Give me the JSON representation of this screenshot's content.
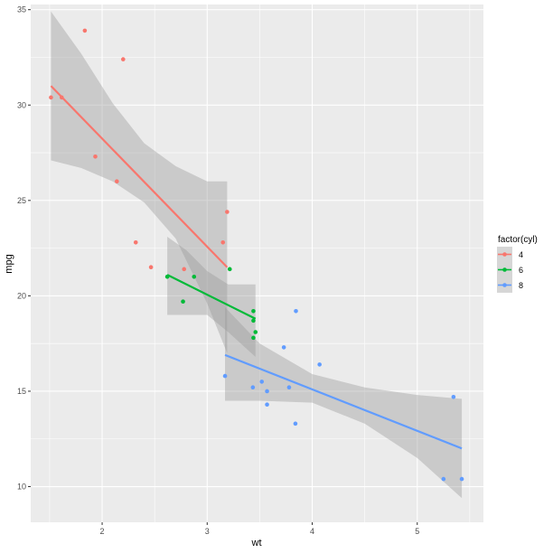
{
  "chart_data": {
    "type": "scatter",
    "xlabel": "wt",
    "ylabel": "mpg",
    "xlim": [
      1.32,
      5.63
    ],
    "ylim": [
      8.13,
      35.27
    ],
    "xticks": [
      2,
      3,
      4,
      5
    ],
    "yticks": [
      10,
      15,
      20,
      25,
      30,
      35
    ],
    "grid": true,
    "legend": {
      "title": "factor(cyl)",
      "position": "right"
    },
    "colors": {
      "4": "#F8766D",
      "6": "#00BA38",
      "8": "#619CFF",
      "band": "#999999",
      "panel": "#EBEBEB"
    },
    "series": [
      {
        "name": "4",
        "points": [
          [
            1.513,
            30.4
          ],
          [
            1.615,
            30.4
          ],
          [
            1.835,
            33.9
          ],
          [
            1.935,
            27.3
          ],
          [
            2.14,
            26.0
          ],
          [
            2.2,
            32.4
          ],
          [
            2.32,
            22.8
          ],
          [
            2.465,
            21.5
          ],
          [
            2.78,
            21.4
          ],
          [
            3.15,
            22.8
          ],
          [
            3.19,
            24.4
          ]
        ],
        "fit": {
          "x": [
            1.513,
            3.19
          ],
          "y": [
            31.0,
            21.5
          ]
        },
        "band": {
          "x": [
            1.513,
            1.8,
            2.1,
            2.4,
            2.7,
            3.0,
            3.19
          ],
          "lower": [
            27.1,
            26.7,
            26.0,
            24.9,
            23.0,
            19.6,
            17.0
          ],
          "upper": [
            34.9,
            32.7,
            30.1,
            28.0,
            26.8,
            26.0,
            26.0
          ]
        }
      },
      {
        "name": "6",
        "points": [
          [
            2.62,
            21.0
          ],
          [
            2.77,
            19.7
          ],
          [
            2.875,
            21.0
          ],
          [
            3.215,
            21.4
          ],
          [
            3.44,
            18.7
          ],
          [
            3.44,
            19.2
          ],
          [
            3.44,
            17.8
          ],
          [
            3.46,
            18.1
          ]
        ],
        "fit": {
          "x": [
            2.62,
            3.46
          ],
          "y": [
            21.1,
            18.8
          ]
        },
        "band": {
          "x": [
            2.62,
            2.8,
            3.0,
            3.2,
            3.46
          ],
          "lower": [
            19.0,
            19.0,
            19.0,
            18.1,
            16.8
          ],
          "upper": [
            23.1,
            22.4,
            21.3,
            20.6,
            20.6
          ]
        }
      },
      {
        "name": "8",
        "points": [
          [
            3.17,
            15.8
          ],
          [
            3.435,
            15.2
          ],
          [
            3.52,
            15.5
          ],
          [
            3.57,
            15.0
          ],
          [
            3.57,
            14.3
          ],
          [
            3.73,
            17.3
          ],
          [
            3.78,
            15.2
          ],
          [
            3.84,
            13.3
          ],
          [
            3.845,
            19.2
          ],
          [
            4.07,
            16.4
          ],
          [
            5.25,
            10.4
          ],
          [
            5.345,
            14.7
          ],
          [
            5.424,
            10.4
          ]
        ],
        "fit": {
          "x": [
            3.17,
            5.424
          ],
          "y": [
            16.9,
            12.0
          ]
        },
        "band": {
          "x": [
            3.17,
            3.5,
            4.0,
            4.5,
            5.0,
            5.424
          ],
          "lower": [
            14.5,
            14.5,
            14.4,
            13.3,
            11.5,
            9.4
          ],
          "upper": [
            19.4,
            17.5,
            15.9,
            15.2,
            14.8,
            14.6
          ]
        }
      }
    ]
  }
}
